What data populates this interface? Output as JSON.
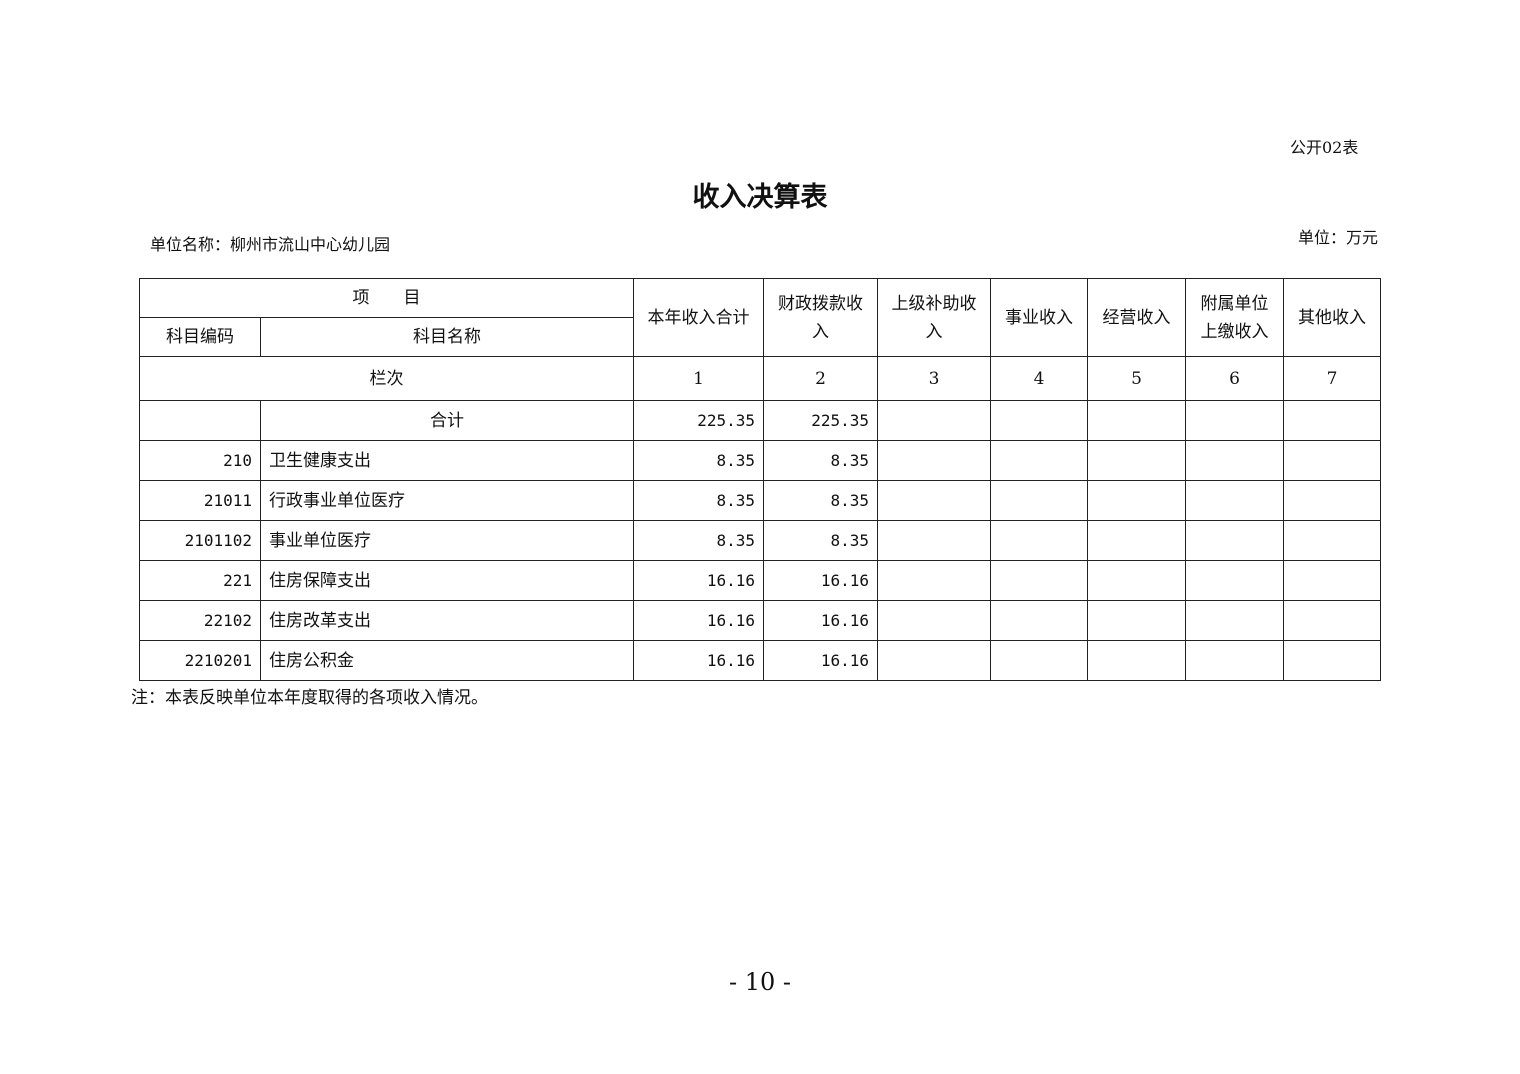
{
  "doc_code": "公开02表",
  "title": "收入决算表",
  "unit_name": "单位名称：柳州市流山中心幼儿园",
  "unit": "单位：万元",
  "header": {
    "item": "项　　目",
    "code": "科目编码",
    "name": "科目名称",
    "cols": [
      "本年收入合计",
      "财政拨款收入",
      "上级补助收入",
      "事业收入",
      "经营收入",
      "附属单位上缴收入",
      "其他收入"
    ],
    "row_label": "栏次",
    "col_nums": [
      "1",
      "2",
      "3",
      "4",
      "5",
      "6",
      "7"
    ]
  },
  "rows": [
    {
      "code": "",
      "name": "合计",
      "total": "225.35",
      "fiscal": "225.35"
    },
    {
      "code": "210",
      "name": "卫生健康支出",
      "total": "8.35",
      "fiscal": "8.35"
    },
    {
      "code": "21011",
      "name": "行政事业单位医疗",
      "total": "8.35",
      "fiscal": "8.35"
    },
    {
      "code": "2101102",
      "name": "事业单位医疗",
      "total": "8.35",
      "fiscal": "8.35"
    },
    {
      "code": "221",
      "name": "住房保障支出",
      "total": "16.16",
      "fiscal": "16.16"
    },
    {
      "code": "22102",
      "name": "住房改革支出",
      "total": "16.16",
      "fiscal": "16.16"
    },
    {
      "code": "2210201",
      "name": "住房公积金",
      "total": "16.16",
      "fiscal": "16.16"
    }
  ],
  "note": "注：本表反映单位本年度取得的各项收入情况。",
  "page_number": "- 10 -"
}
